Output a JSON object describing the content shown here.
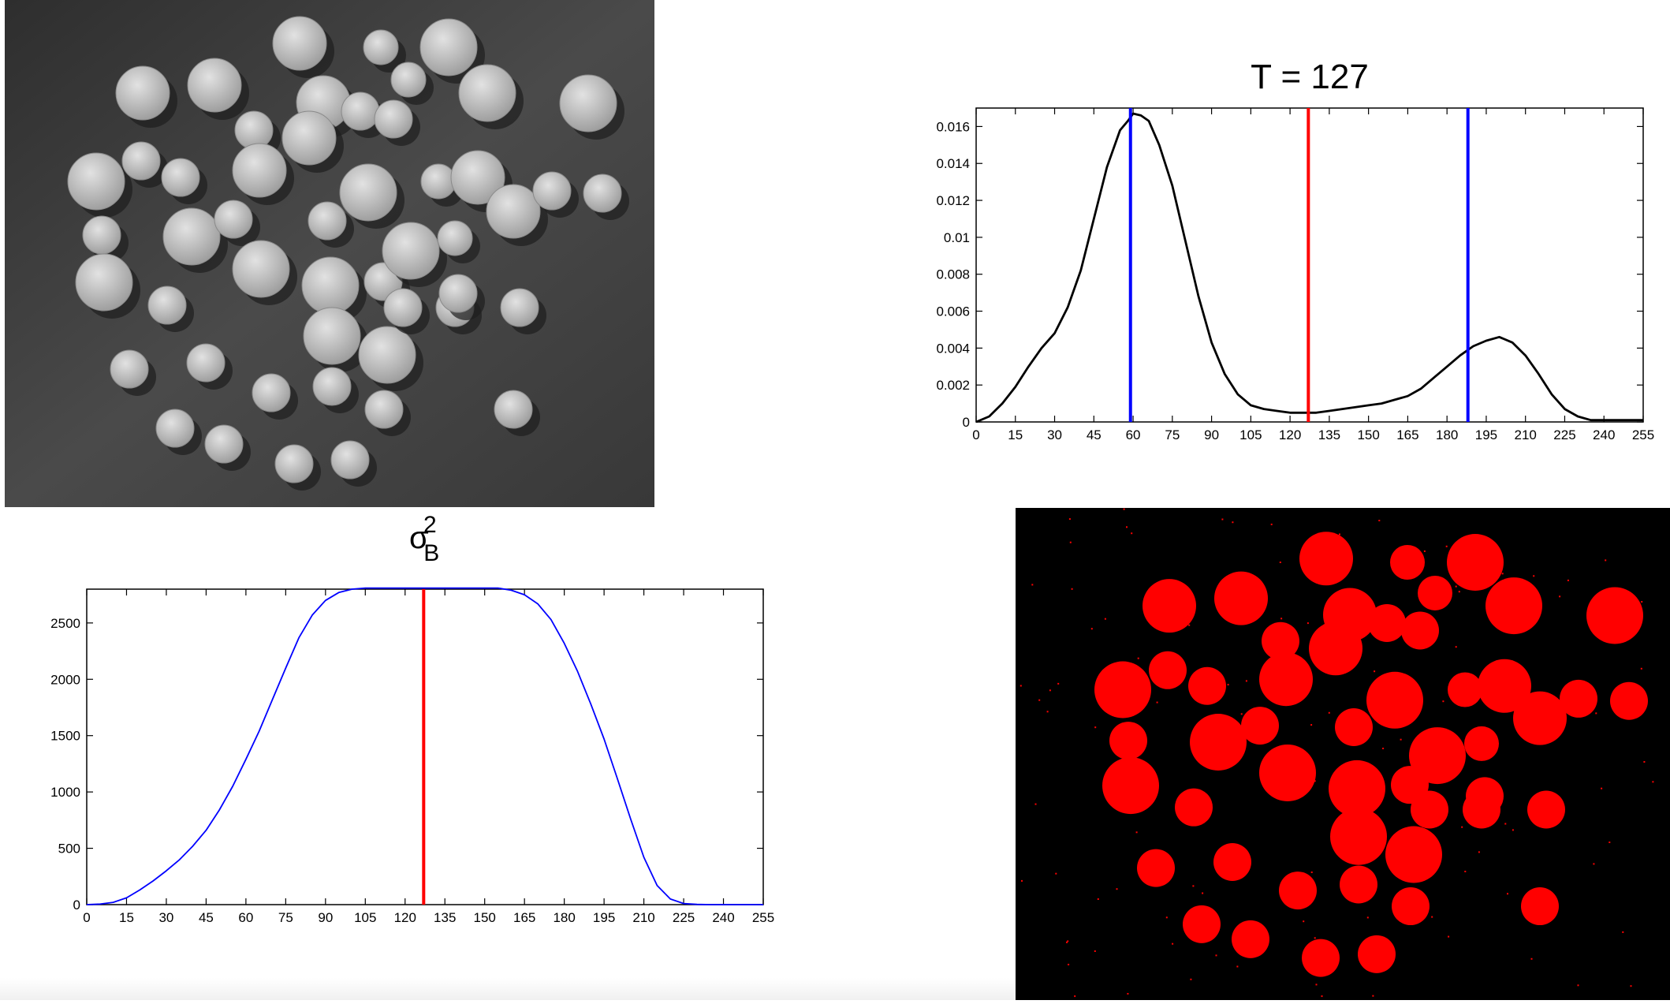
{
  "chart_data": [
    {
      "type": "line",
      "title": "T = 127",
      "xlim": [
        0,
        255
      ],
      "ylim": [
        0,
        0.017
      ],
      "xticks": [
        "0",
        "15",
        "30",
        "45",
        "60",
        "75",
        "90",
        "105",
        "120",
        "135",
        "150",
        "165",
        "180",
        "195",
        "210",
        "225",
        "240",
        "255"
      ],
      "yticks": [
        "0",
        "0.002",
        "0.004",
        "0.006",
        "0.008",
        "0.01",
        "0.012",
        "0.014",
        "0.016"
      ],
      "series": [
        {
          "color": "#000000",
          "x": [
            0,
            5,
            10,
            15,
            20,
            25,
            30,
            35,
            40,
            45,
            50,
            55,
            58,
            60,
            63,
            66,
            70,
            75,
            80,
            85,
            90,
            95,
            100,
            105,
            110,
            115,
            120,
            125,
            130,
            135,
            140,
            145,
            150,
            155,
            160,
            165,
            170,
            175,
            180,
            185,
            190,
            195,
            200,
            205,
            210,
            215,
            220,
            225,
            230,
            235,
            240,
            245,
            250,
            255
          ],
          "y": [
            0,
            0.0003,
            0.001,
            0.0019,
            0.003,
            0.004,
            0.0048,
            0.0062,
            0.0082,
            0.011,
            0.0138,
            0.0158,
            0.0163,
            0.0167,
            0.0166,
            0.0163,
            0.015,
            0.0128,
            0.0098,
            0.0068,
            0.0043,
            0.0026,
            0.0015,
            0.0009,
            0.0007,
            0.0006,
            0.0005,
            0.0005,
            0.0005,
            0.0006,
            0.0007,
            0.0008,
            0.0009,
            0.001,
            0.0012,
            0.0014,
            0.0018,
            0.0024,
            0.003,
            0.0036,
            0.0041,
            0.0044,
            0.0046,
            0.0043,
            0.0036,
            0.0026,
            0.0015,
            0.0007,
            0.0003,
            0.0001,
            0.0001,
            0.0001,
            0.0001,
            0.0001
          ]
        }
      ],
      "vlines": [
        {
          "x": 59,
          "color": "#0000ff"
        },
        {
          "x": 127,
          "color": "#ff0000"
        },
        {
          "x": 188,
          "color": "#0000ff"
        }
      ]
    },
    {
      "type": "line",
      "title": "σ²_B",
      "xlim": [
        0,
        255
      ],
      "ylim": [
        0,
        2800
      ],
      "xticks": [
        "0",
        "15",
        "30",
        "45",
        "60",
        "75",
        "90",
        "105",
        "120",
        "135",
        "150",
        "165",
        "180",
        "195",
        "210",
        "225",
        "240",
        "255"
      ],
      "yticks": [
        "0",
        "500",
        "1000",
        "1500",
        "2000",
        "2500"
      ],
      "series": [
        {
          "color": "#0000ff",
          "x": [
            0,
            5,
            10,
            15,
            20,
            25,
            30,
            35,
            40,
            45,
            50,
            55,
            60,
            65,
            70,
            75,
            80,
            85,
            90,
            95,
            100,
            105,
            110,
            115,
            120,
            125,
            130,
            135,
            140,
            145,
            150,
            155,
            160,
            165,
            170,
            175,
            180,
            185,
            190,
            195,
            200,
            205,
            210,
            215,
            220,
            225,
            230,
            235,
            240,
            245,
            250,
            255
          ],
          "y": [
            0,
            5,
            20,
            60,
            130,
            210,
            300,
            400,
            520,
            660,
            840,
            1050,
            1290,
            1540,
            1820,
            2100,
            2370,
            2570,
            2700,
            2770,
            2800,
            2810,
            2810,
            2810,
            2810,
            2810,
            2810,
            2810,
            2810,
            2810,
            2810,
            2810,
            2790,
            2750,
            2670,
            2530,
            2320,
            2070,
            1780,
            1470,
            1120,
            760,
            420,
            170,
            50,
            10,
            2,
            0,
            0,
            0,
            0,
            0
          ]
        }
      ],
      "vlines": [
        {
          "x": 127,
          "color": "#ff0000"
        }
      ]
    }
  ],
  "images": {
    "photo": {
      "desc": "grayscale-coins",
      "colors": {
        "bg": "#3a3a3a",
        "coin": "#c8c8c8",
        "coin_edge": "#8a8a8a"
      }
    },
    "mask": {
      "colors": {
        "bg": "#000000",
        "fg": "#ff0000"
      }
    }
  }
}
